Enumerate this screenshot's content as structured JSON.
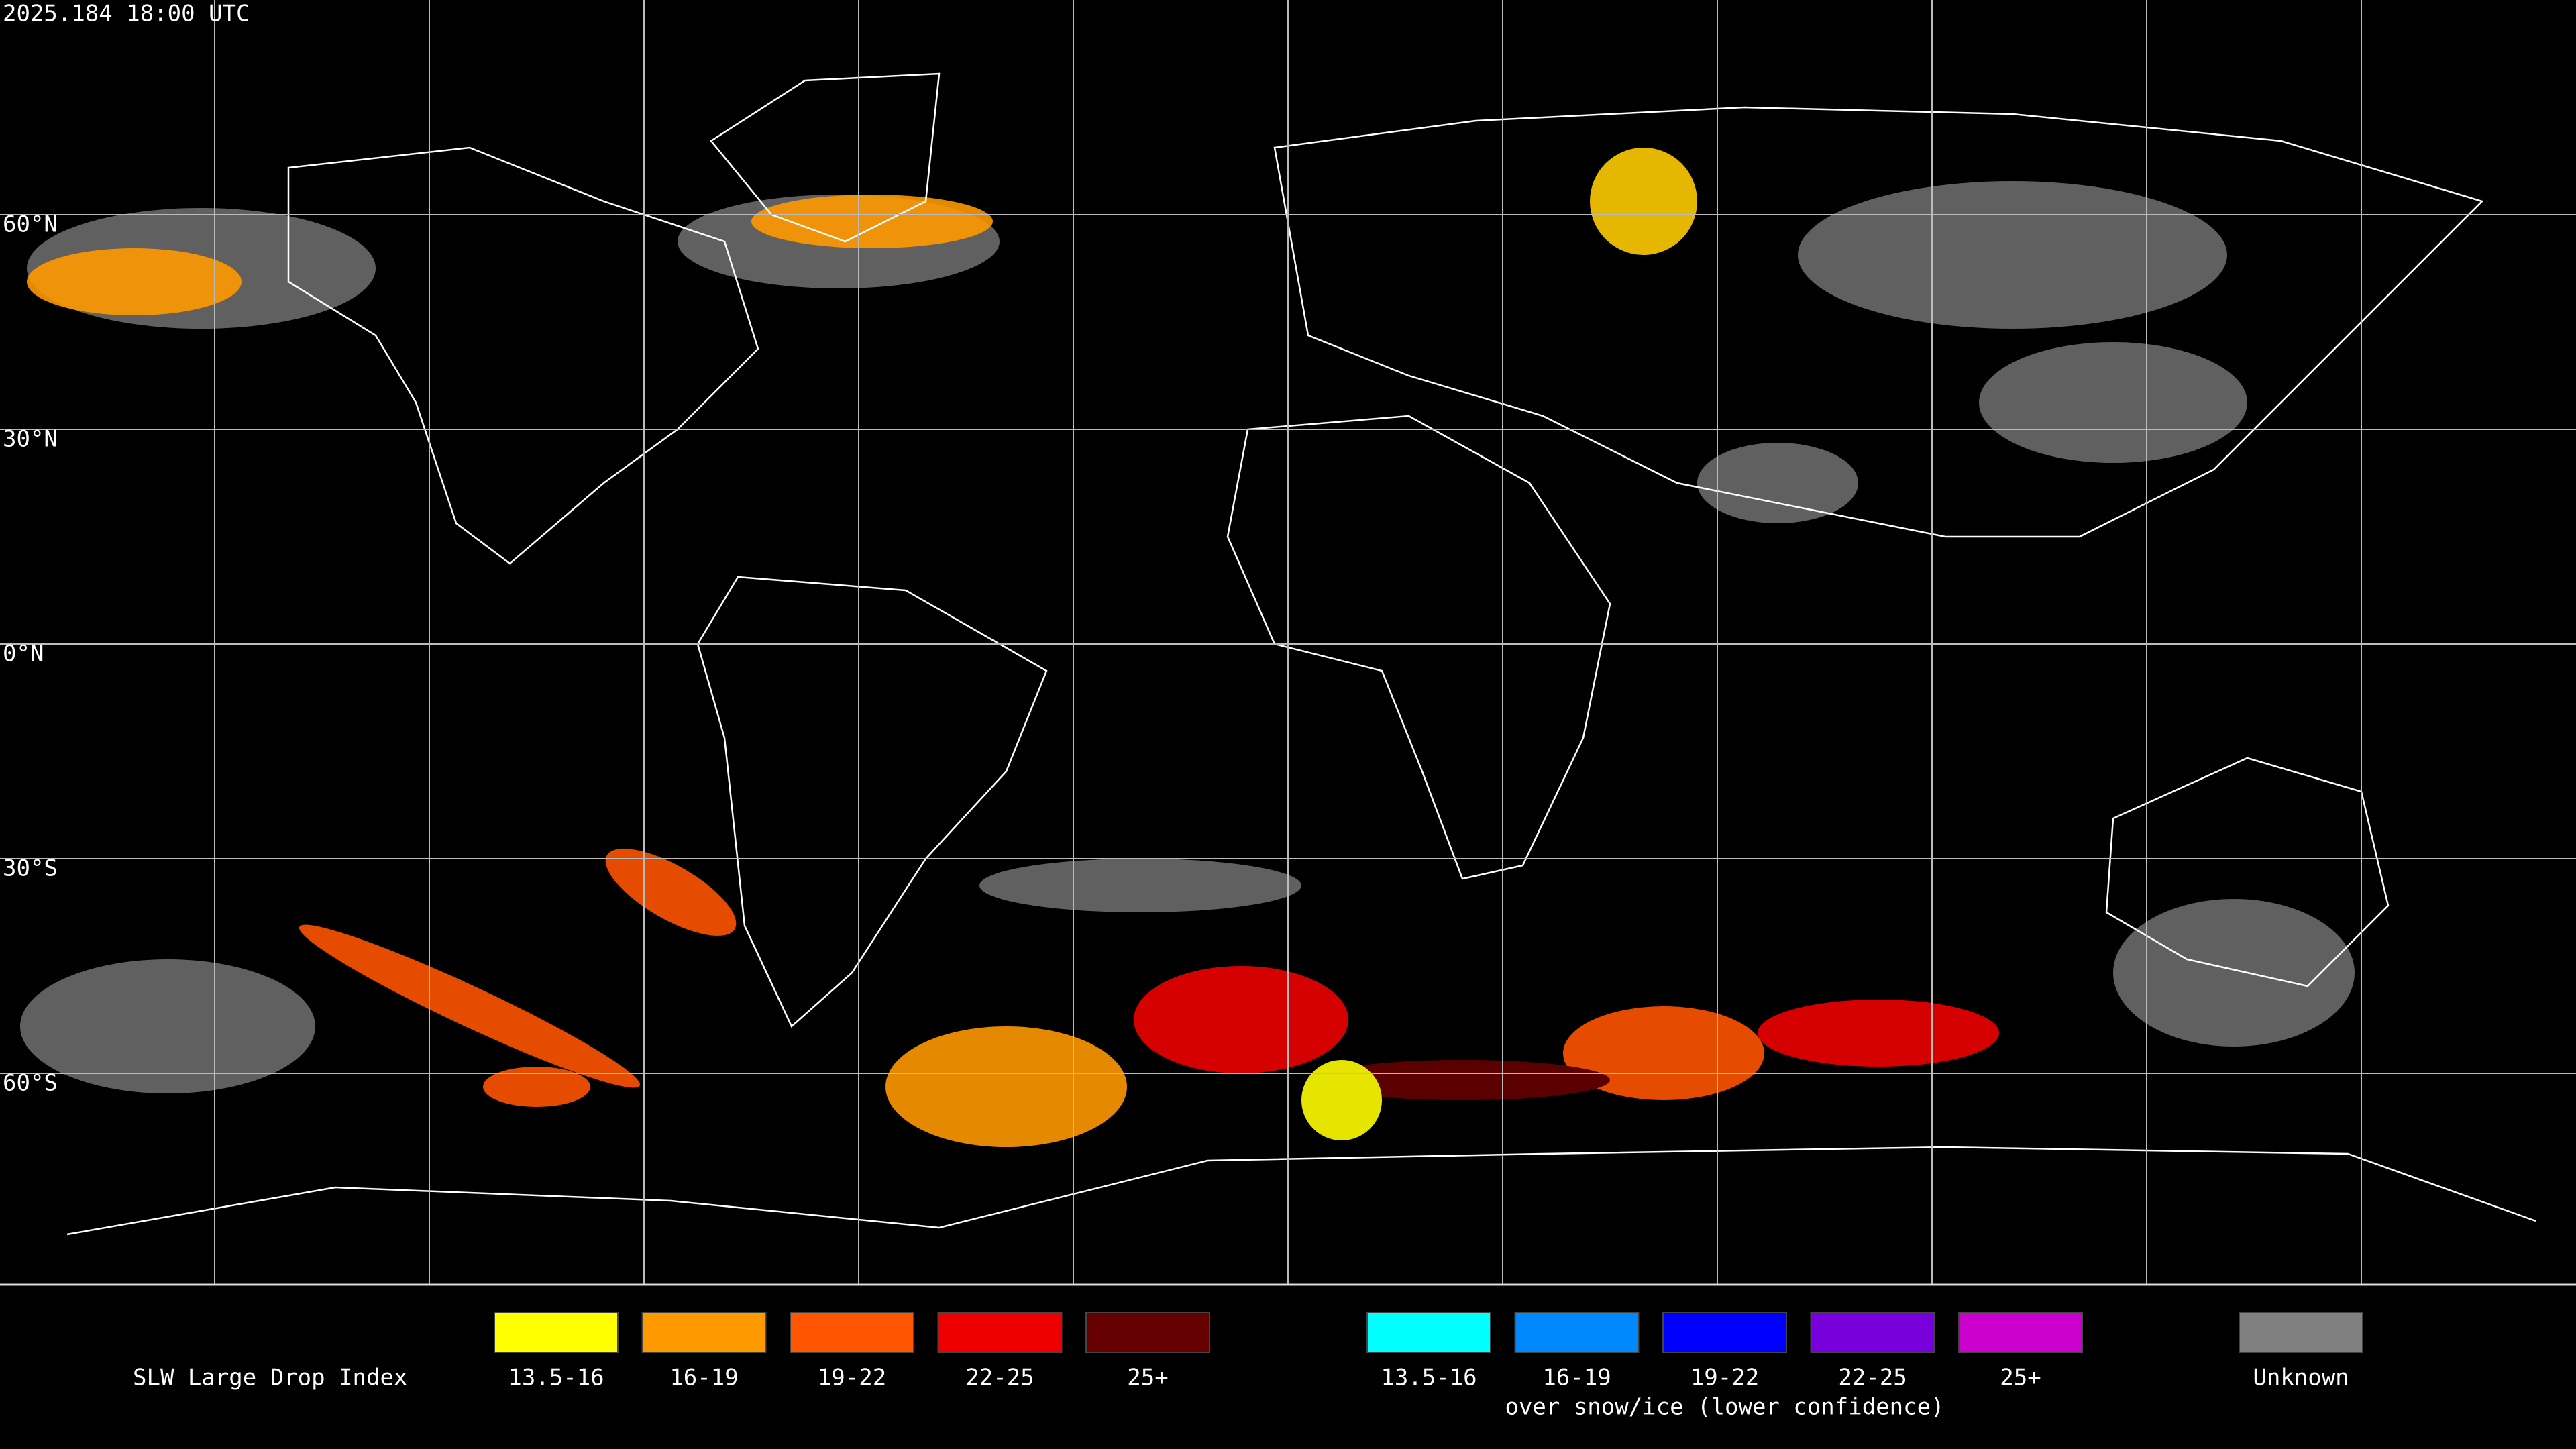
{
  "header": {
    "timestamp": "2025.184 18:00 UTC"
  },
  "grid": {
    "lat_labels": [
      "60°N",
      "30°N",
      "0°N",
      "30°S",
      "60°S"
    ]
  },
  "legend": {
    "title": "SLW Large Drop Index",
    "groups": [
      {
        "items": [
          {
            "label": "13.5-16",
            "color": "#ffff00"
          },
          {
            "label": "16-19",
            "color": "#ff9900"
          },
          {
            "label": "19-22",
            "color": "#ff5500"
          },
          {
            "label": "22-25",
            "color": "#ee0000"
          },
          {
            "label": "25+",
            "color": "#660000"
          }
        ]
      },
      {
        "caption": "over snow/ice (lower confidence)",
        "items": [
          {
            "label": "13.5-16",
            "color": "#00ffff"
          },
          {
            "label": "16-19",
            "color": "#0088ff"
          },
          {
            "label": "19-22",
            "color": "#0000ff"
          },
          {
            "label": "22-25",
            "color": "#7700dd"
          },
          {
            "label": "25+",
            "color": "#cc00cc"
          }
        ]
      }
    ],
    "unknown": {
      "label": "Unknown",
      "color": "#808080"
    }
  }
}
